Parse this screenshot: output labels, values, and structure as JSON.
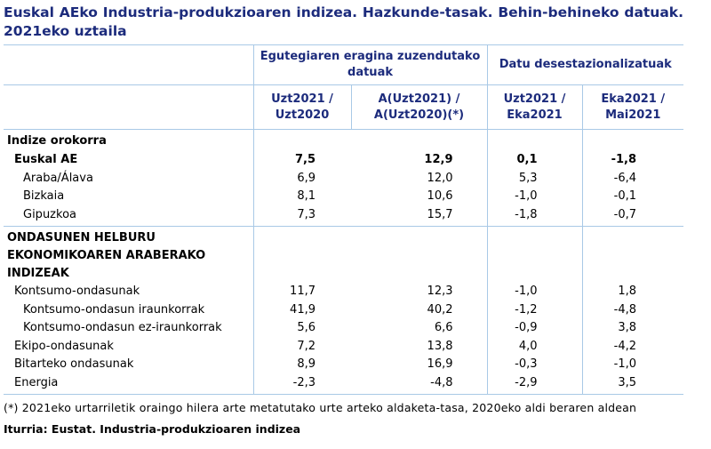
{
  "title": "Euskal AEko Industria-produkzioaren indizea. Hazkunde-tasak. Behin-behineko datuak. 2021eko uztaila",
  "table": {
    "groups": [
      "Egutegiaren eragina zuzendutako datuak",
      "Datu desestazionalizatuak"
    ],
    "columns": [
      "Uzt2021 / Uzt2020",
      "A(Uzt2021) / A(Uzt2020)(*)",
      "Uzt2021 / Eka2021",
      "Eka2021 / Mai2021"
    ],
    "sections": [
      {
        "title": "Indize orokorra",
        "rows": [
          {
            "label": "Euskal AE",
            "values": [
              "7,5",
              "12,9",
              "0,1",
              "-1,8"
            ],
            "children": [
              {
                "label": "Araba/Álava",
                "values": [
                  "6,9",
                  "12,0",
                  "5,3",
                  "-6,4"
                ]
              },
              {
                "label": "Bizkaia",
                "values": [
                  "8,1",
                  "10,6",
                  "-1,0",
                  "-0,1"
                ]
              },
              {
                "label": "Gipuzkoa",
                "values": [
                  "7,3",
                  "15,7",
                  "-1,8",
                  "-0,7"
                ]
              }
            ]
          }
        ]
      },
      {
        "title": "ONDASUNEN HELBURU EKONOMIKOAREN ARABERAKO INDIZEAK",
        "rows": [
          {
            "label": "Kontsumo-ondasunak",
            "values": [
              "11,7",
              "12,3",
              "-1,0",
              "1,8"
            ],
            "children": [
              {
                "label": "Kontsumo-ondasun iraunkorrak",
                "values": [
                  "41,9",
                  "40,2",
                  "-1,2",
                  "-4,8"
                ]
              },
              {
                "label": "Kontsumo-ondasun ez-iraunkorrak",
                "values": [
                  "5,6",
                  "6,6",
                  "-0,9",
                  "3,8"
                ]
              }
            ]
          },
          {
            "label": "Ekipo-ondasunak",
            "values": [
              "7,2",
              "13,8",
              "4,0",
              "-4,2"
            ]
          },
          {
            "label": "Bitarteko ondasunak",
            "values": [
              "8,9",
              "16,9",
              "-0,3",
              "-1,0"
            ]
          },
          {
            "label": "Energia",
            "values": [
              "-2,3",
              "-4,8",
              "-2,9",
              "3,5"
            ]
          }
        ]
      }
    ]
  },
  "footnote": "(*) 2021eko urtarriletik oraingo hilera arte metatutako urte arteko aldaketa-tasa, 2020eko aldi beraren aldean",
  "source": "Iturria: Eustat. Industria-produkzioaren indizea"
}
